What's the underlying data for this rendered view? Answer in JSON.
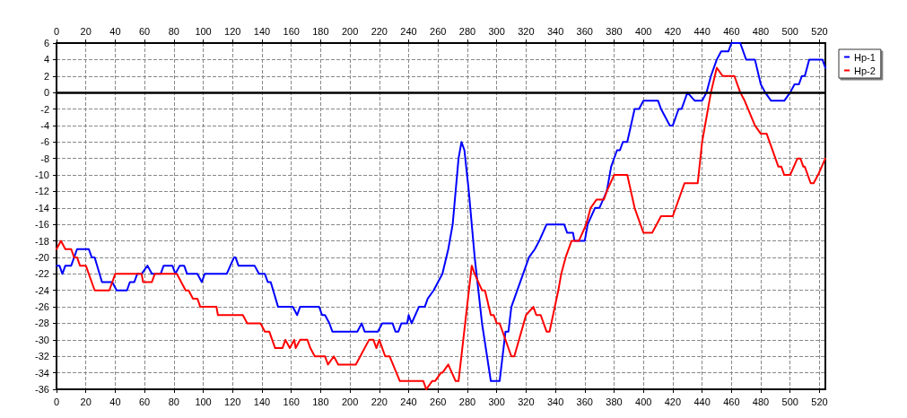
{
  "chart_data": {
    "type": "line",
    "xlim": [
      0,
      524
    ],
    "xticks": [
      0,
      20,
      40,
      60,
      80,
      100,
      120,
      140,
      160,
      180,
      200,
      220,
      240,
      260,
      280,
      300,
      320,
      340,
      360,
      380,
      400,
      420,
      440,
      460,
      480,
      500,
      520
    ],
    "x2lim": [
      0,
      524
    ],
    "x2ticks": [
      0,
      20,
      40,
      60,
      80,
      100,
      120,
      140,
      160,
      180,
      200,
      220,
      240,
      260,
      280,
      300,
      320,
      340,
      360,
      380,
      400,
      420,
      440,
      460,
      480,
      500,
      520
    ],
    "ylim": [
      -36,
      6
    ],
    "yticks": [
      -36,
      -34,
      -32,
      -30,
      -28,
      -26,
      -24,
      -22,
      -20,
      -18,
      -16,
      -14,
      -12,
      -10,
      -8,
      -6,
      -4,
      -2,
      0,
      2,
      4,
      6
    ],
    "grid": true,
    "legend": "top right",
    "marker": "none",
    "line_style": "solid",
    "ref_lines": [
      {
        "axis": "y",
        "value": 0,
        "label": null,
        "color": "#000000"
      }
    ],
    "series": [
      {
        "name": "Hp-1",
        "color": "#0000ff",
        "x": [
          0,
          2,
          4,
          6,
          10,
          14,
          22,
          24,
          26,
          31,
          38,
          41,
          48,
          50,
          53,
          55,
          58,
          62,
          65,
          71,
          73,
          79,
          81,
          84,
          87,
          89,
          96,
          99,
          101,
          116,
          121,
          122,
          124,
          135,
          138,
          142,
          144,
          146,
          151,
          161,
          164,
          166,
          179,
          181,
          183,
          186,
          188,
          205,
          208,
          210,
          219,
          222,
          229,
          231,
          233,
          235,
          239,
          240,
          242,
          247,
          251,
          253,
          257,
          263,
          267,
          270,
          274,
          276,
          278,
          281,
          285,
          290,
          296,
          302,
          306,
          308,
          310,
          318,
          322,
          326,
          329,
          334,
          346,
          348,
          352,
          353,
          360,
          362,
          367,
          370,
          375,
          378,
          382,
          384,
          386,
          389,
          394,
          397,
          400,
          410,
          412,
          418,
          420,
          424,
          426,
          430,
          435,
          440,
          443,
          446,
          450,
          453,
          458,
          460,
          466,
          470,
          476,
          480,
          483,
          487,
          496,
          500,
          503,
          506,
          508,
          510,
          513,
          522,
          524
        ],
        "values": [
          -21,
          -21,
          -22,
          -21,
          -21,
          -19,
          -19,
          -20,
          -20,
          -23,
          -23,
          -24,
          -24,
          -23,
          -23,
          -22,
          -22,
          -21,
          -22,
          -22,
          -21,
          -21,
          -22,
          -21,
          -21,
          -22,
          -22,
          -23,
          -22,
          -22,
          -20,
          -20,
          -21,
          -21,
          -22,
          -22,
          -23,
          -23,
          -26,
          -26,
          -27,
          -26,
          -26,
          -27,
          -27,
          -28,
          -29,
          -29,
          -28,
          -29,
          -29,
          -28,
          -28,
          -29,
          -29,
          -28,
          -28,
          -27,
          -28,
          -26,
          -26,
          -25,
          -24,
          -22,
          -19,
          -16,
          -8,
          -6,
          -7,
          -12,
          -20,
          -28,
          -35,
          -35,
          -29,
          -29,
          -26,
          -22,
          -20,
          -19,
          -18,
          -16,
          -16,
          -17,
          -17,
          -18,
          -18,
          -16,
          -14,
          -14,
          -12,
          -9,
          -7,
          -7,
          -6,
          -6,
          -2,
          -2,
          -1,
          -1,
          -2,
          -4,
          -4,
          -2,
          -2,
          0,
          -1,
          -1,
          0,
          2,
          4,
          5,
          5,
          6,
          6,
          4,
          4,
          1,
          0,
          -1,
          -1,
          0,
          1,
          1,
          2,
          2,
          4,
          4,
          3
        ]
      },
      {
        "name": "Hp-2",
        "color": "#ff0000",
        "x": [
          0,
          3,
          6,
          10,
          12,
          14,
          16,
          20,
          26,
          36,
          40,
          58,
          59,
          65,
          67,
          82,
          85,
          88,
          90,
          93,
          96,
          98,
          109,
          110,
          127,
          130,
          139,
          142,
          145,
          149,
          154,
          156,
          159,
          162,
          163,
          166,
          171,
          173,
          176,
          183,
          185,
          189,
          192,
          204,
          207,
          213,
          216,
          218,
          220,
          224,
          227,
          234,
          250,
          252,
          256,
          258,
          262,
          263,
          267,
          272,
          274,
          283,
          285,
          290,
          292,
          296,
          298,
          300,
          302,
          310,
          312,
          320,
          325,
          327,
          330,
          334,
          336,
          342,
          344,
          347,
          351,
          356,
          361,
          364,
          368,
          373,
          375,
          380,
          389,
          394,
          400,
          406,
          409,
          412,
          420,
          428,
          437,
          440,
          446,
          450,
          454,
          462,
          466,
          469,
          476,
          480,
          484,
          492,
          494,
          496,
          500,
          505,
          507,
          509,
          510,
          514,
          516,
          519,
          524
        ],
        "values": [
          -19,
          -18,
          -19,
          -19,
          -20,
          -20,
          -21,
          -21,
          -24,
          -24,
          -22,
          -22,
          -23,
          -23,
          -22,
          -22,
          -23,
          -24,
          -24,
          -25,
          -25,
          -26,
          -26,
          -27,
          -27,
          -28,
          -28,
          -29,
          -29,
          -31,
          -31,
          -30,
          -31,
          -30,
          -31,
          -30,
          -30,
          -31,
          -32,
          -32,
          -33,
          -32,
          -33,
          -33,
          -32,
          -30,
          -30,
          -31,
          -30,
          -32,
          -32,
          -35,
          -35,
          -36,
          -35,
          -35,
          -34,
          -34,
          -33,
          -35,
          -35,
          -21,
          -22,
          -24,
          -24,
          -27,
          -27,
          -28,
          -28,
          -32,
          -32,
          -27,
          -26,
          -27,
          -27,
          -29,
          -29,
          -24,
          -22,
          -20,
          -18,
          -18,
          -16,
          -14,
          -13,
          -13,
          -12,
          -10,
          -10,
          -14,
          -17,
          -17,
          -16,
          -15,
          -15,
          -11,
          -11,
          -6,
          0,
          3,
          2,
          2,
          0,
          -1,
          -4,
          -5,
          -5,
          -9,
          -9,
          -10,
          -10,
          -8,
          -8,
          -9,
          -9,
          -11,
          -11,
          -10,
          -8
        ]
      }
    ]
  }
}
